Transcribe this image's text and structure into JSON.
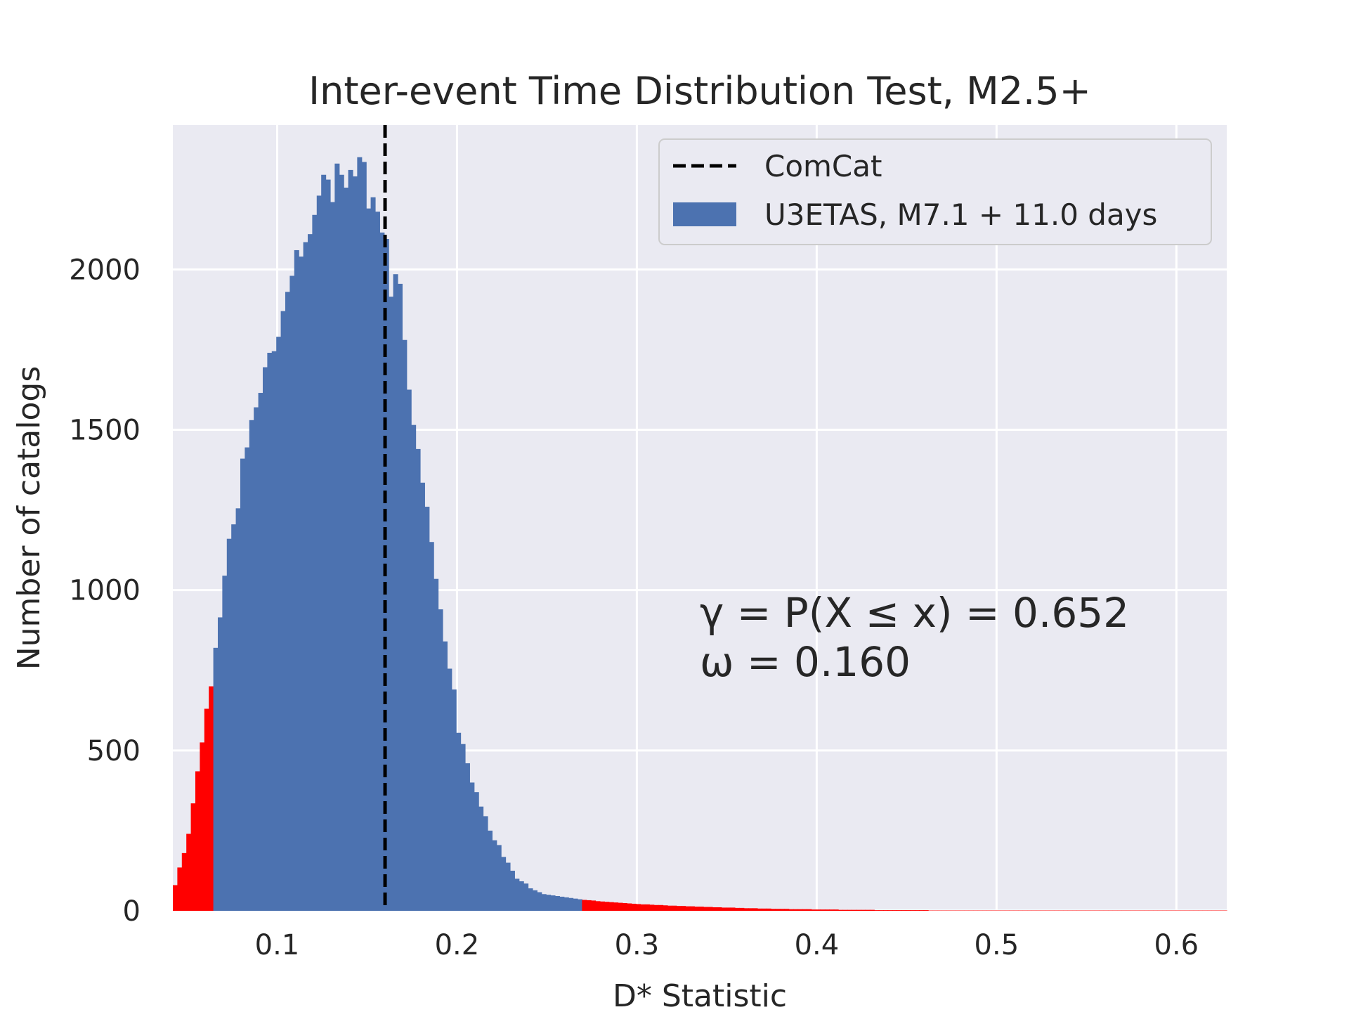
{
  "chart_data": {
    "type": "bar",
    "title": "Inter-event Time Distribution Test, M2.5+",
    "xlabel": "D* Statistic",
    "ylabel": "Number of catalogs",
    "xlim": [
      0.042,
      0.628
    ],
    "ylim": [
      0,
      2450
    ],
    "xticks": [
      "0.1",
      "0.2",
      "0.3",
      "0.4",
      "0.5",
      "0.6"
    ],
    "xtick_values": [
      0.1,
      0.2,
      0.3,
      0.4,
      0.5,
      0.6
    ],
    "yticks": [
      "0",
      "500",
      "1000",
      "1500",
      "2000"
    ],
    "ytick_values": [
      0,
      500,
      1000,
      1500,
      2000
    ],
    "grid": true,
    "legend_position": "top-right",
    "colors": {
      "bulk": "#4c72b0",
      "tail": "#ff0000",
      "observed_line": "#000000",
      "background": "#eaeaf2",
      "grid": "#ffffff"
    },
    "histogram": {
      "x_start": 0.042,
      "bin_width": 0.0025,
      "lower_tail_end": 0.064,
      "upper_tail_start": 0.27,
      "counts": [
        80,
        135,
        180,
        240,
        335,
        435,
        525,
        630,
        700,
        820,
        915,
        1045,
        1160,
        1205,
        1255,
        1410,
        1445,
        1530,
        1570,
        1615,
        1695,
        1740,
        1745,
        1790,
        1870,
        1930,
        1980,
        2060,
        2040,
        2085,
        2110,
        2170,
        2230,
        2295,
        2280,
        2210,
        2330,
        2295,
        2255,
        2310,
        2290,
        2350,
        2335,
        2190,
        2225,
        2180,
        2115,
        2095,
        1915,
        1985,
        1955,
        1780,
        1625,
        1515,
        1440,
        1335,
        1260,
        1150,
        1035,
        940,
        840,
        755,
        690,
        555,
        520,
        460,
        400,
        370,
        325,
        295,
        250,
        220,
        205,
        168,
        150,
        125,
        100,
        92,
        85,
        70,
        64,
        58,
        52,
        50,
        48,
        46,
        44,
        42,
        40,
        38,
        36,
        34,
        33,
        32,
        30,
        29,
        28,
        27,
        26,
        25,
        24,
        23,
        22,
        21,
        20,
        20,
        19,
        18,
        18,
        17,
        16,
        16,
        15,
        15,
        14,
        14,
        13,
        13,
        12,
        12,
        11,
        11,
        10,
        10,
        10,
        9,
        9,
        8,
        8,
        8,
        7,
        7,
        7,
        6,
        6,
        6,
        6,
        5,
        5,
        5,
        5,
        5,
        4,
        4,
        4,
        4,
        4,
        4,
        3,
        3,
        3,
        3,
        3,
        3,
        3,
        3,
        2,
        2,
        2,
        2,
        2,
        2,
        2,
        2,
        2,
        2,
        2,
        2,
        1,
        1,
        1,
        1,
        1,
        1,
        1,
        1,
        1,
        1,
        1,
        1,
        1,
        1,
        1,
        1,
        1,
        1,
        1,
        1,
        1,
        1,
        1,
        1,
        1,
        1,
        1,
        1,
        1,
        1,
        1,
        1,
        1,
        1,
        1,
        1,
        1,
        1,
        1,
        1,
        1,
        1,
        1,
        1,
        1,
        1,
        1,
        1,
        1,
        1,
        1,
        1,
        1,
        1,
        1,
        1,
        1,
        1,
        1,
        1,
        1,
        1,
        1,
        1,
        1,
        1,
        1,
        1,
        1
      ]
    },
    "observed_value": 0.16,
    "legend": [
      {
        "label": "ComCat",
        "style": "dashed-line"
      },
      {
        "label": "U3ETAS, M7.1 + 11.0 days",
        "style": "patch"
      }
    ],
    "annotations": [
      "γ = P(X ≤ x) = 0.652",
      "ω = 0.160"
    ]
  }
}
